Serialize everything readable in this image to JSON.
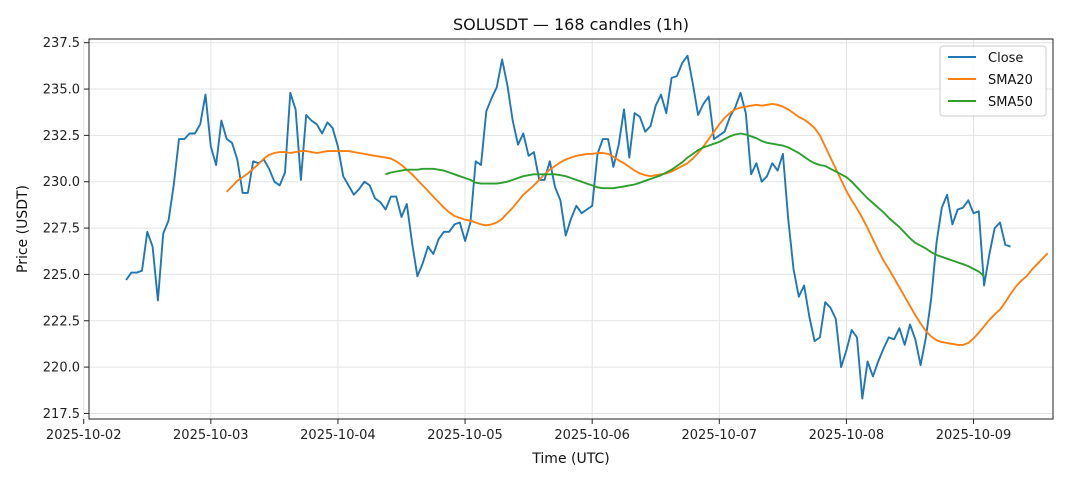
{
  "chart_data": {
    "type": "line",
    "title": "SOLUSDT — 168 candles (1h)",
    "xlabel": "Time (UTC)",
    "ylabel": "Price (USDT)",
    "x_start": "2025-10-02 08:00",
    "x_step_hours": 1,
    "xlim": [
      "2025-10-02 01:00",
      "2025-10-09 15:00"
    ],
    "ylim": [
      217.2,
      237.7
    ],
    "x_ticks": [
      "2025-10-02",
      "2025-10-03",
      "2025-10-04",
      "2025-10-05",
      "2025-10-06",
      "2025-10-07",
      "2025-10-08",
      "2025-10-09"
    ],
    "y_ticks": [
      217.5,
      220.0,
      222.5,
      225.0,
      227.5,
      230.0,
      232.5,
      235.0,
      237.5
    ],
    "y_tick_labels": [
      "217.5",
      "220.0",
      "222.5",
      "225.0",
      "227.5",
      "230.0",
      "232.5",
      "235.0",
      "237.5"
    ],
    "grid": true,
    "legend_position": "top-right",
    "series": [
      {
        "name": "Close",
        "color": "#1f77b4",
        "start_index": 0,
        "values": [
          224.7,
          225.1,
          225.1,
          225.2,
          227.3,
          226.5,
          223.6,
          227.2,
          227.9,
          229.8,
          232.3,
          232.3,
          232.6,
          232.6,
          233.1,
          234.7,
          231.9,
          230.9,
          233.3,
          232.3,
          232.1,
          231.2,
          229.4,
          229.4,
          231.1,
          231.0,
          231.2,
          230.7,
          230.0,
          229.8,
          230.5,
          234.8,
          233.9,
          230.1,
          233.6,
          233.3,
          233.1,
          232.6,
          233.2,
          232.9,
          231.9,
          230.3,
          229.8,
          229.3,
          229.6,
          230.0,
          229.8,
          229.1,
          228.9,
          228.5,
          229.2,
          229.2,
          228.1,
          228.8,
          226.7,
          224.9,
          225.6,
          226.5,
          226.1,
          226.9,
          227.3,
          227.3,
          227.7,
          227.8,
          226.8,
          227.8,
          231.1,
          230.9,
          233.8,
          234.5,
          235.1,
          236.6,
          235.2,
          233.3,
          232.0,
          232.6,
          231.4,
          231.6,
          230.1,
          230.1,
          231.1,
          229.7,
          229.0,
          227.1,
          228.0,
          228.7,
          228.3,
          228.5,
          228.7,
          231.5,
          232.3,
          232.3,
          230.8,
          232.0,
          233.9,
          231.3,
          233.7,
          233.5,
          232.7,
          233.0,
          234.1,
          234.7,
          233.7,
          235.6,
          235.7,
          236.4,
          236.8,
          235.3,
          233.6,
          234.2,
          234.6,
          232.3,
          232.5,
          232.7,
          233.5,
          234.0,
          234.8,
          233.7,
          230.4,
          231.0,
          230.0,
          230.3,
          231.0,
          230.6,
          231.5,
          228.0,
          225.3,
          223.8,
          224.4,
          222.7,
          221.4,
          221.6,
          223.5,
          223.2,
          222.6,
          220.0,
          220.9,
          222.0,
          221.6,
          218.3,
          220.3,
          219.5,
          220.3,
          221.0,
          221.6,
          221.5,
          222.1,
          221.2,
          222.3,
          221.5,
          220.1,
          221.6,
          223.7,
          226.7,
          228.6,
          229.3,
          227.7,
          228.5,
          228.6,
          229.0,
          228.3,
          228.4,
          224.4,
          226.1,
          227.5,
          227.8,
          226.6,
          226.5
        ]
      },
      {
        "name": "SMA20",
        "color": "#ff7f0e",
        "start_index": 19,
        "values": [
          229.45,
          229.75,
          230.05,
          230.25,
          230.45,
          230.7,
          230.95,
          231.25,
          231.45,
          231.55,
          231.6,
          231.6,
          231.55,
          231.6,
          231.65,
          231.65,
          231.6,
          231.55,
          231.6,
          231.65,
          231.65,
          231.65,
          231.65,
          231.65,
          231.6,
          231.55,
          231.5,
          231.45,
          231.4,
          231.35,
          231.3,
          231.25,
          231.1,
          230.9,
          230.65,
          230.4,
          230.1,
          229.8,
          229.5,
          229.2,
          228.9,
          228.6,
          228.35,
          228.15,
          228.05,
          227.95,
          227.9,
          227.8,
          227.7,
          227.65,
          227.7,
          227.8,
          228.0,
          228.3,
          228.6,
          228.95,
          229.3,
          229.55,
          229.8,
          230.1,
          230.4,
          230.65,
          230.85,
          231.05,
          231.2,
          231.3,
          231.4,
          231.45,
          231.5,
          231.5,
          231.55,
          231.55,
          231.5,
          231.35,
          231.15,
          231.0,
          230.8,
          230.6,
          230.45,
          230.35,
          230.3,
          230.35,
          230.4,
          230.45,
          230.55,
          230.7,
          230.85,
          231.0,
          231.25,
          231.55,
          231.9,
          232.3,
          232.7,
          233.1,
          233.45,
          233.7,
          233.9,
          234.0,
          234.05,
          234.1,
          234.15,
          234.1,
          234.15,
          234.2,
          234.15,
          234.05,
          233.9,
          233.7,
          233.5,
          233.35,
          233.15,
          232.9,
          232.5,
          231.9,
          231.3,
          230.7,
          230.1,
          229.5,
          229.0,
          228.55,
          228.05,
          227.5,
          226.9,
          226.3,
          225.75,
          225.3,
          224.8,
          224.3,
          223.8,
          223.3,
          222.8,
          222.35,
          221.95,
          221.65,
          221.45,
          221.35,
          221.3,
          221.25,
          221.2,
          221.2,
          221.3,
          221.55,
          221.85,
          222.2,
          222.55,
          222.85,
          223.1,
          223.5,
          223.95,
          224.35,
          224.65,
          224.9,
          225.25,
          225.55,
          225.85,
          226.15
        ]
      },
      {
        "name": "SMA50",
        "color": "#2ca02c",
        "start_index": 49,
        "values": [
          230.4,
          230.5,
          230.55,
          230.6,
          230.65,
          230.65,
          230.65,
          230.7,
          230.7,
          230.7,
          230.65,
          230.6,
          230.5,
          230.4,
          230.3,
          230.2,
          230.1,
          229.95,
          229.9,
          229.9,
          229.9,
          229.9,
          229.95,
          230.0,
          230.1,
          230.2,
          230.3,
          230.35,
          230.4,
          230.4,
          230.4,
          230.4,
          230.4,
          230.35,
          230.3,
          230.2,
          230.1,
          230.0,
          229.9,
          229.8,
          229.7,
          229.65,
          229.65,
          229.65,
          229.7,
          229.75,
          229.8,
          229.85,
          229.95,
          230.05,
          230.15,
          230.25,
          230.35,
          230.5,
          230.65,
          230.85,
          231.05,
          231.3,
          231.5,
          231.7,
          231.85,
          231.95,
          232.05,
          232.15,
          232.3,
          232.45,
          232.55,
          232.6,
          232.55,
          232.45,
          232.35,
          232.2,
          232.1,
          232.05,
          232.0,
          231.95,
          231.85,
          231.7,
          231.55,
          231.35,
          231.15,
          231.0,
          230.9,
          230.85,
          230.7,
          230.55,
          230.4,
          230.25,
          230.0,
          229.7,
          229.4,
          229.1,
          228.85,
          228.6,
          228.35,
          228.05,
          227.8,
          227.55,
          227.25,
          226.95,
          226.7,
          226.55,
          226.4,
          226.2,
          226.05,
          225.95,
          225.85,
          225.75,
          225.65,
          225.55,
          225.45,
          225.3,
          225.15,
          224.9
        ]
      }
    ]
  }
}
